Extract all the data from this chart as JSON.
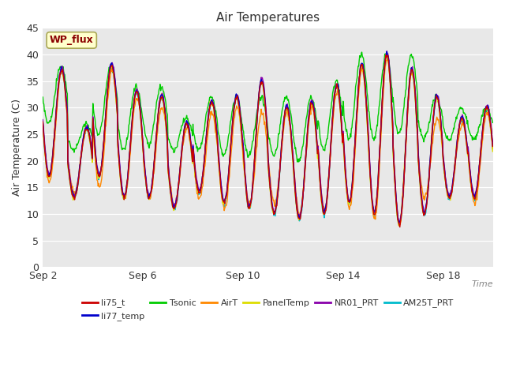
{
  "title": "Air Temperatures",
  "xlabel": "Time",
  "ylabel": "Air Temperature (C)",
  "ylim": [
    0,
    45
  ],
  "yticks": [
    0,
    5,
    10,
    15,
    20,
    25,
    30,
    35,
    40,
    45
  ],
  "xtick_positions": [
    0,
    4,
    8,
    12,
    16
  ],
  "xtick_labels": [
    "Sep 2",
    "Sep 6",
    "Sep 10",
    "Sep 14",
    "Sep 18"
  ],
  "background_color": "#ffffff",
  "plot_bg_color": "#e8e8e8",
  "legend_entries": [
    {
      "label": "li75_t",
      "color": "#cc0000"
    },
    {
      "label": "li77_temp",
      "color": "#0000cc"
    },
    {
      "label": "Tsonic",
      "color": "#00cc00"
    },
    {
      "label": "AirT",
      "color": "#ff8800"
    },
    {
      "label": "PanelTemp",
      "color": "#dddd00"
    },
    {
      "label": "NR01_PRT",
      "color": "#8800aa"
    },
    {
      "label": "AM25T_PRT",
      "color": "#00bbcc"
    }
  ],
  "wp_flux_label": "WP_flux",
  "wp_flux_color": "#8b0000",
  "wp_flux_bg": "#ffffcc",
  "n_days": 18,
  "pts_per_day": 48,
  "day_peaks": [
    37,
    26,
    38,
    33,
    32,
    27,
    31,
    32,
    35,
    30,
    31,
    34,
    38,
    40,
    37,
    32,
    28,
    30
  ],
  "day_mins": [
    17,
    13,
    17,
    13,
    13,
    11,
    14,
    12,
    11,
    10,
    9,
    10,
    12,
    10,
    8,
    10,
    13,
    13
  ],
  "tsonic_peaks": [
    38,
    27,
    38,
    34,
    34,
    28,
    32,
    32,
    32,
    32,
    32,
    35,
    40,
    40,
    40,
    32,
    30,
    30
  ],
  "tsonic_mins": [
    27,
    22,
    25,
    22,
    23,
    22,
    22,
    21,
    21,
    21,
    20,
    22,
    24,
    24,
    25,
    24,
    24,
    24
  ],
  "airt_peaks": [
    37,
    26,
    37,
    32,
    30,
    26,
    29,
    30,
    29,
    29,
    30,
    33,
    37,
    39,
    37,
    28,
    27,
    29
  ],
  "airt_mins": [
    16,
    14,
    15,
    13,
    13,
    12,
    13,
    11,
    12,
    12,
    10,
    11,
    11,
    9,
    8,
    13,
    13,
    12
  ]
}
